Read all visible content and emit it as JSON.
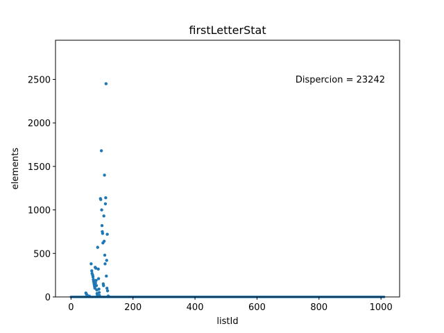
{
  "chart_data": {
    "type": "scatter",
    "title": "firstLetterStat",
    "xlabel": "listId",
    "ylabel": "elements",
    "xlim": [
      -50,
      1060
    ],
    "ylim": [
      0,
      2950
    ],
    "xticks": [
      0,
      200,
      400,
      600,
      800,
      1000
    ],
    "yticks": [
      0,
      500,
      1000,
      1500,
      2000,
      2500
    ],
    "grid": false,
    "legend": "none",
    "color": "#1f77b4",
    "annotation": "Dispercion = 23242",
    "zero_baseline": {
      "x_from": 0,
      "x_to": 1010,
      "value": 0
    },
    "points": [
      [
        48,
        45
      ],
      [
        50,
        30
      ],
      [
        52,
        20
      ],
      [
        55,
        10
      ],
      [
        58,
        5
      ],
      [
        60,
        8
      ],
      [
        65,
        380
      ],
      [
        67,
        300
      ],
      [
        68,
        270
      ],
      [
        70,
        250
      ],
      [
        71,
        230
      ],
      [
        72,
        200
      ],
      [
        73,
        180
      ],
      [
        74,
        160
      ],
      [
        75,
        140
      ],
      [
        76,
        120
      ],
      [
        77,
        100
      ],
      [
        78,
        340
      ],
      [
        79,
        160
      ],
      [
        80,
        330
      ],
      [
        81,
        190
      ],
      [
        82,
        130
      ],
      [
        83,
        80
      ],
      [
        84,
        40
      ],
      [
        85,
        20
      ],
      [
        86,
        570
      ],
      [
        88,
        320
      ],
      [
        89,
        210
      ],
      [
        90,
        90
      ],
      [
        91,
        50
      ],
      [
        92,
        15
      ],
      [
        95,
        1130
      ],
      [
        96,
        1120
      ],
      [
        98,
        1680
      ],
      [
        99,
        1000
      ],
      [
        100,
        820
      ],
      [
        101,
        750
      ],
      [
        102,
        730
      ],
      [
        103,
        620
      ],
      [
        104,
        150
      ],
      [
        105,
        130
      ],
      [
        106,
        930
      ],
      [
        107,
        640
      ],
      [
        108,
        1400
      ],
      [
        109,
        480
      ],
      [
        110,
        380
      ],
      [
        111,
        1070
      ],
      [
        112,
        1140
      ],
      [
        113,
        2450
      ],
      [
        114,
        240
      ],
      [
        115,
        420
      ],
      [
        116,
        100
      ],
      [
        117,
        720
      ],
      [
        118,
        70
      ],
      [
        120,
        10
      ],
      [
        122,
        5
      ]
    ]
  }
}
